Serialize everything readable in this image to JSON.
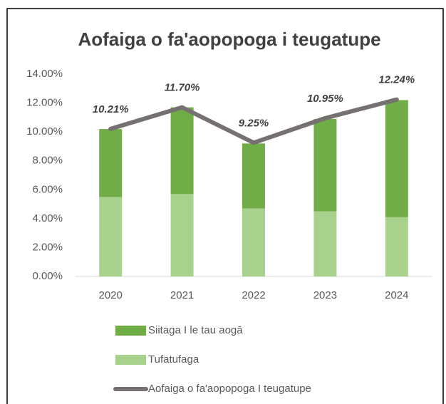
{
  "chart_data": {
    "type": "bar",
    "stacked": true,
    "title": "Aofaiga o fa'aopopoga i teugatupe",
    "categories": [
      "2020",
      "2021",
      "2022",
      "2023",
      "2024"
    ],
    "series": [
      {
        "name": "Siitaga I le tau aogā",
        "type": "bar",
        "color": "#70ad47",
        "values": [
          4.7,
          6.0,
          4.5,
          6.4,
          8.1
        ]
      },
      {
        "name": "Tufatufaga",
        "type": "bar",
        "color": "#a9d18e",
        "values": [
          5.5,
          5.7,
          4.7,
          4.5,
          4.1
        ]
      },
      {
        "name": "Aofaiga o fa'aopopoga I teugatupe",
        "type": "line",
        "color": "#767171",
        "values": [
          10.21,
          11.7,
          9.25,
          10.95,
          12.24
        ],
        "value_labels": [
          "10.21%",
          "11.70%",
          "9.25%",
          "10.95%",
          "12.24%"
        ]
      }
    ],
    "ylim": [
      0,
      14
    ],
    "yticks": [
      {
        "value": 0,
        "label": "0.00%"
      },
      {
        "value": 2,
        "label": "2.00%"
      },
      {
        "value": 4,
        "label": "4.00%"
      },
      {
        "value": 6,
        "label": "6.00%"
      },
      {
        "value": 8,
        "label": "8.00%"
      },
      {
        "value": 10,
        "label": "10.00%"
      },
      {
        "value": 12,
        "label": "12.00%"
      },
      {
        "value": 14,
        "label": "14.00%"
      }
    ],
    "grid": false,
    "legend": "bottom"
  }
}
